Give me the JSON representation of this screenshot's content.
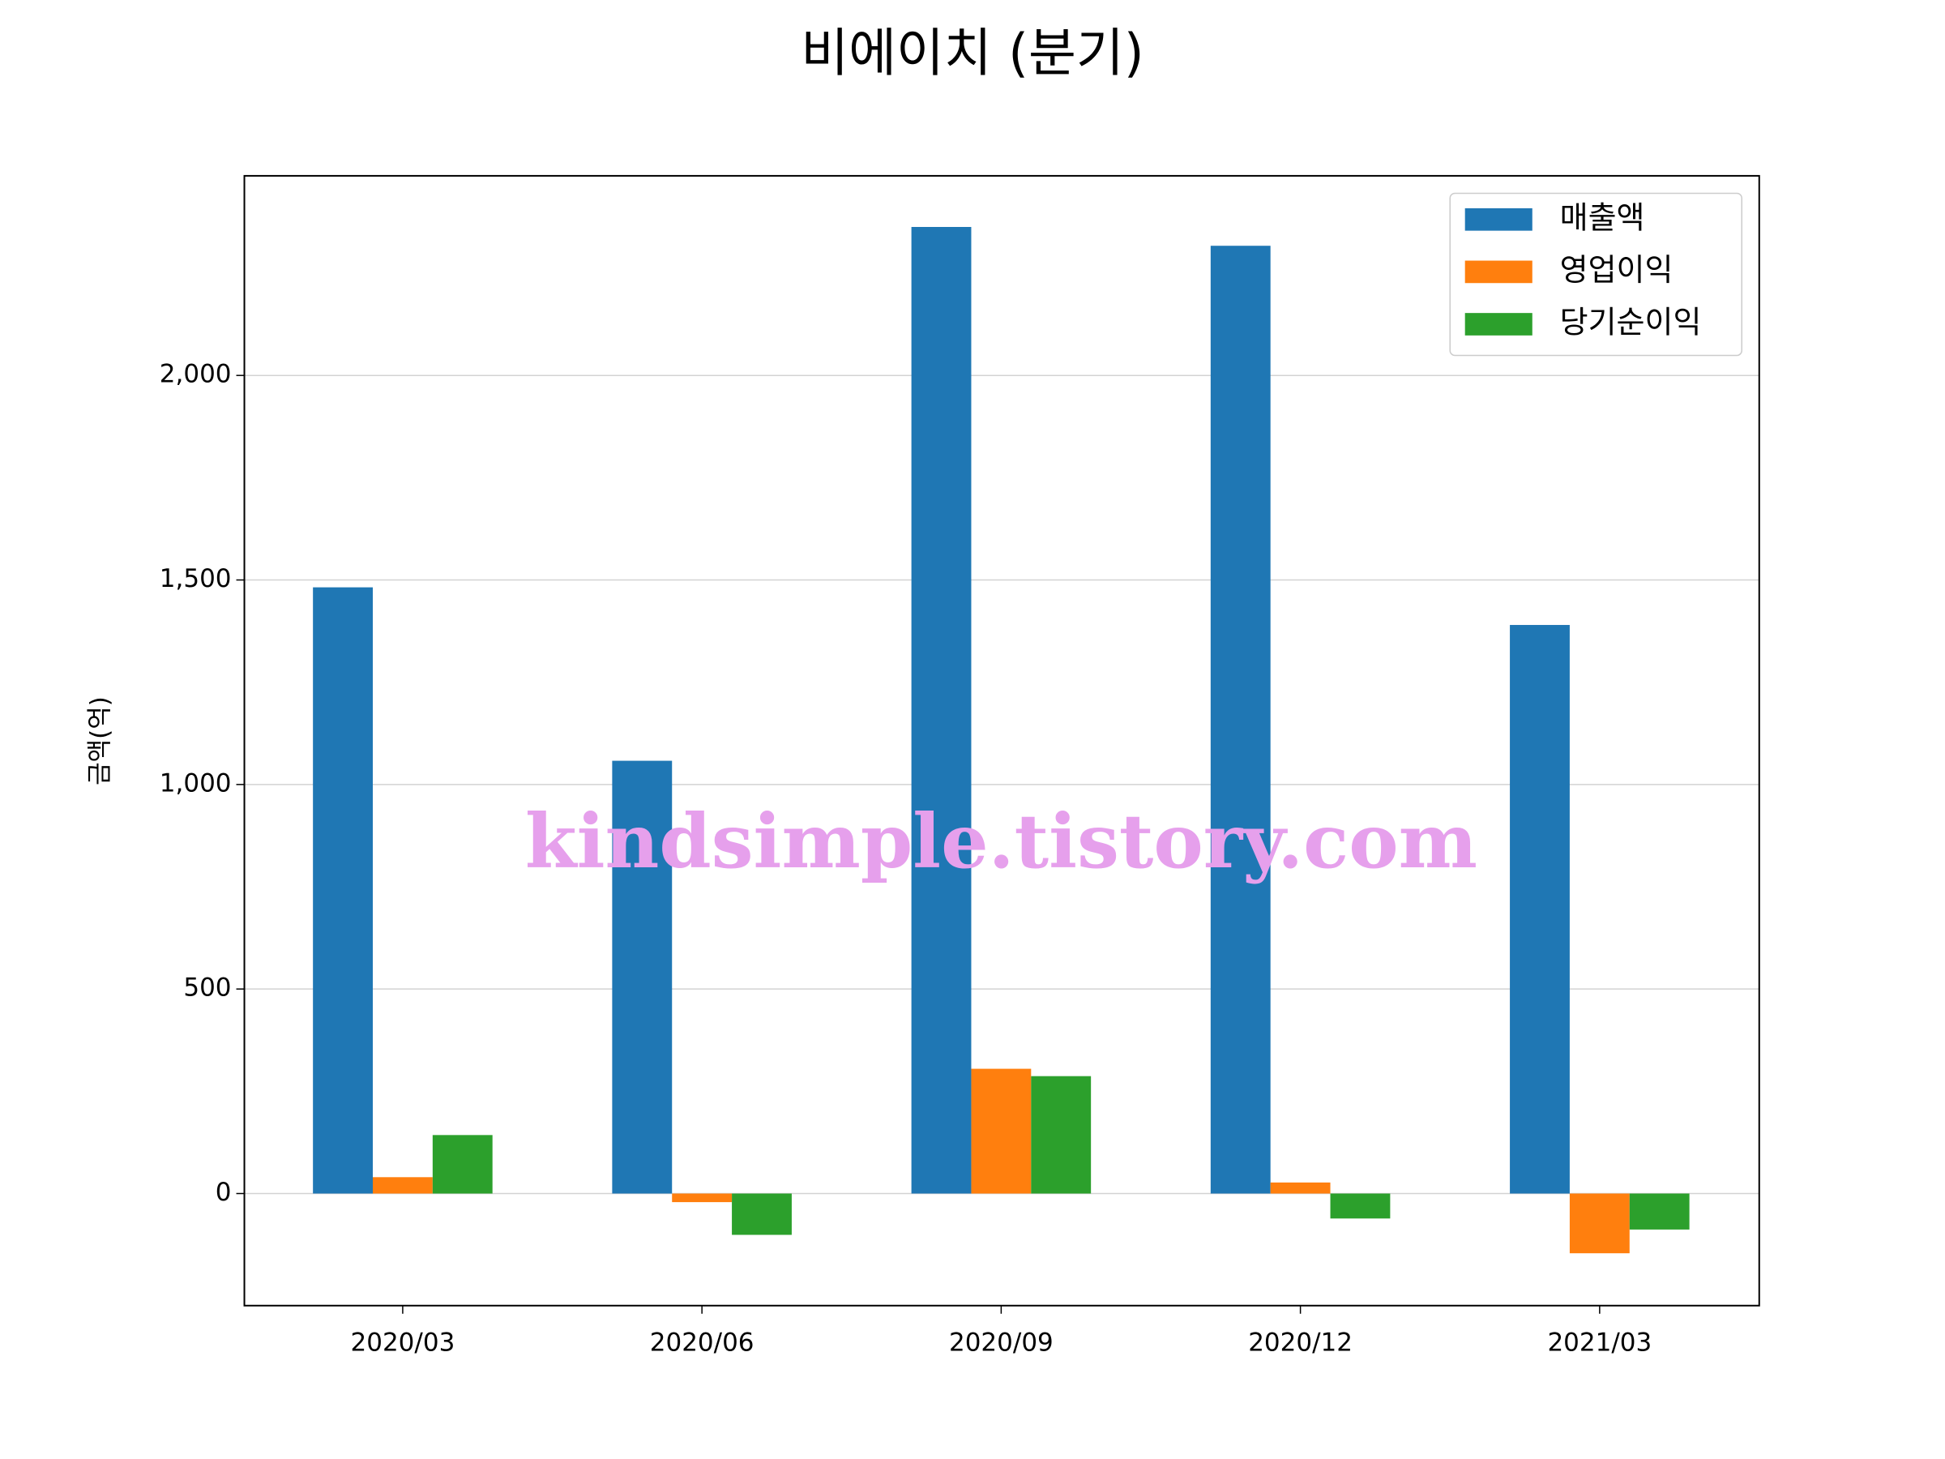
{
  "chart_data": {
    "type": "bar",
    "title": "비에이치 (분기)",
    "y_label": "금액(억)",
    "watermark": "kindsimple.tistory.com",
    "categories": [
      "2020/03",
      "2020/06",
      "2020/09",
      "2020/12",
      "2021/03"
    ],
    "series": [
      {
        "name": "매출액",
        "color": "#1f77b4",
        "values": [
          1482,
          1058,
          2363,
          2317,
          1390
        ]
      },
      {
        "name": "영업이익",
        "color": "#ff7f0e",
        "values": [
          40,
          -21,
          305,
          27,
          -146
        ]
      },
      {
        "name": "당기순이익",
        "color": "#2ca02c",
        "values": [
          143,
          -101,
          287,
          -61,
          -88
        ]
      }
    ],
    "ylim": [
      -274,
      2488
    ],
    "yticks": [
      0,
      500,
      {
        "value": 1000,
        "label": "1,000"
      },
      {
        "value": 1500,
        "label": "1,500"
      },
      {
        "value": 2000,
        "label": "2,000"
      }
    ],
    "grid": true,
    "legend": "upper right"
  }
}
